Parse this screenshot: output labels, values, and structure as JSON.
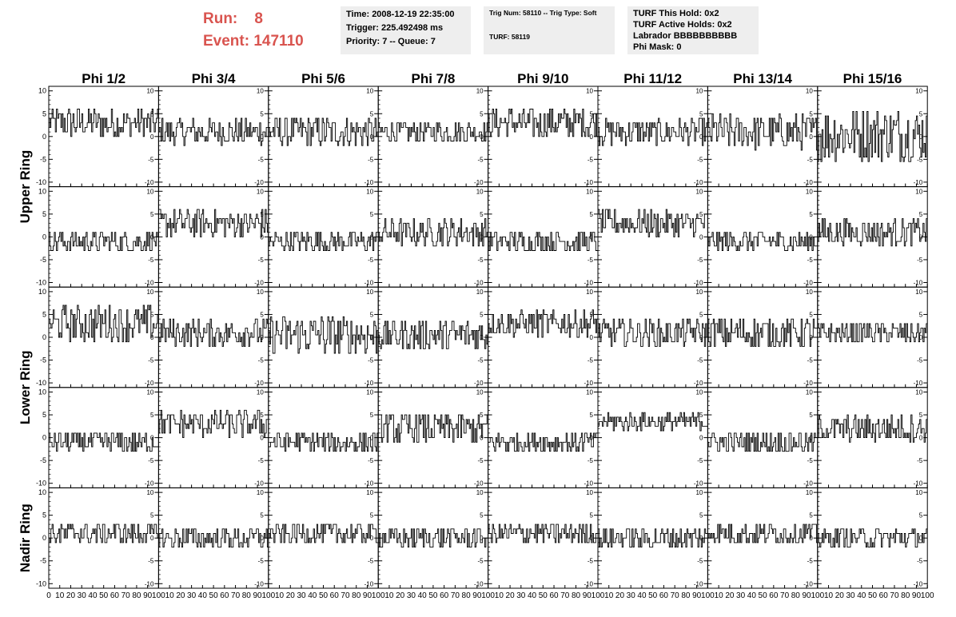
{
  "header": {
    "run_label": "Run:",
    "run_value": "8",
    "event_label": "Event:",
    "event_value": "147110"
  },
  "time_box": {
    "time": "Time: 2008-12-19 22:35:00",
    "trigger": "Trigger: 225.492498 ms",
    "priority": "Priority: 7 -- Queue: 7"
  },
  "trig_box": {
    "trig": "Trig Num: 58110 -- Trig Type: Soft",
    "turf": "TURF: 58119"
  },
  "turf_box": {
    "hold": "TURF This Hold: 0x2",
    "active": "TURF Active Holds: 0x2",
    "labrador": "Labrador BBBBBBBBBB",
    "phimask": "Phi Mask: 0"
  },
  "chart_data": {
    "type": "line",
    "columns": [
      "Phi 1/2",
      "Phi 3/4",
      "Phi 5/6",
      "Phi 7/8",
      "Phi 9/10",
      "Phi 11/12",
      "Phi 13/14",
      "Phi 15/16"
    ],
    "ring_labels": [
      {
        "name": "Upper Ring",
        "rows": [
          0,
          1
        ]
      },
      {
        "name": "Lower Ring",
        "rows": [
          2,
          3
        ]
      },
      {
        "name": "Nadir Ring",
        "rows": [
          4
        ]
      }
    ],
    "rows": 5,
    "xlim": [
      0,
      100
    ],
    "ylim": [
      -11,
      11
    ],
    "x_ticks": [
      0,
      10,
      20,
      30,
      40,
      50,
      60,
      70,
      80,
      90,
      100
    ],
    "y_ticks": [
      -10,
      -5,
      0,
      5,
      10
    ],
    "samples_per_trace": 100,
    "trace_profiles": [
      [
        {
          "base": 3,
          "amp": 3.5
        },
        {
          "base": 1,
          "amp": 3
        },
        {
          "base": 1,
          "amp": 3.5
        },
        {
          "base": 1,
          "amp": 2.5
        },
        {
          "base": 3,
          "amp": 3.5
        },
        {
          "base": 1,
          "amp": 3
        },
        {
          "base": 1,
          "amp": 4
        },
        {
          "base": 0.5,
          "amp": 6
        }
      ],
      [
        {
          "base": -1,
          "amp": 2.5
        },
        {
          "base": 3,
          "amp": 3
        },
        {
          "base": -1,
          "amp": 2.5
        },
        {
          "base": 1,
          "amp": 3
        },
        {
          "base": -1,
          "amp": 2.5
        },
        {
          "base": 3,
          "amp": 3
        },
        {
          "base": -1,
          "amp": 2.5
        },
        {
          "base": 1,
          "amp": 3
        }
      ],
      [
        {
          "base": 3,
          "amp": 4
        },
        {
          "base": 1,
          "amp": 3
        },
        {
          "base": 0.5,
          "amp": 4.5
        },
        {
          "base": 0.5,
          "amp": 3.5
        },
        {
          "base": 3,
          "amp": 3
        },
        {
          "base": 1,
          "amp": 3
        },
        {
          "base": 1,
          "amp": 3.5
        },
        {
          "base": 1,
          "amp": 2.5
        }
      ],
      [
        {
          "base": -1,
          "amp": 2.5
        },
        {
          "base": 3,
          "amp": 3
        },
        {
          "base": -1,
          "amp": 2.5
        },
        {
          "base": 2,
          "amp": 3.5
        },
        {
          "base": -1,
          "amp": 2.5
        },
        {
          "base": 3.5,
          "amp": 2
        },
        {
          "base": -1,
          "amp": 2.5
        },
        {
          "base": 2,
          "amp": 3
        }
      ],
      [
        {
          "base": 1,
          "amp": 2.5
        },
        {
          "base": 0,
          "amp": 2.5
        },
        {
          "base": 1,
          "amp": 2.5
        },
        {
          "base": 0,
          "amp": 2.5
        },
        {
          "base": 1,
          "amp": 2.5
        },
        {
          "base": 0,
          "amp": 2.5
        },
        {
          "base": 1,
          "amp": 2.5
        },
        {
          "base": 0,
          "amp": 2.5
        }
      ]
    ],
    "trace_color": "#000000",
    "grid": false
  }
}
